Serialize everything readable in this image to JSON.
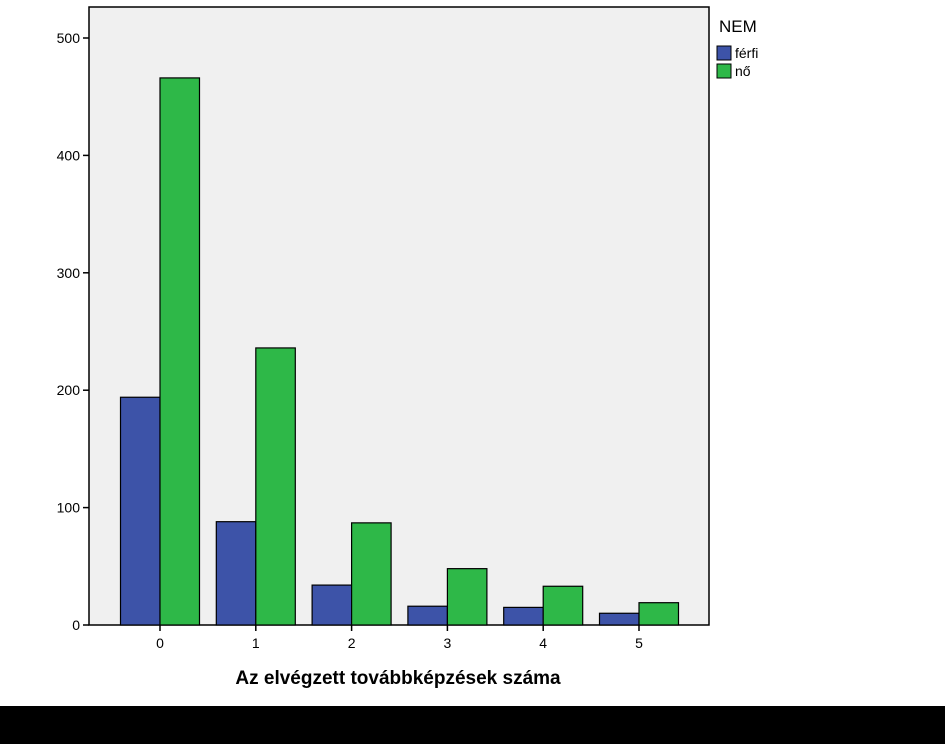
{
  "chart_data": {
    "type": "bar",
    "title": "",
    "xlabel": "Az elvégzett továbbképzések száma",
    "ylabel": "",
    "categories": [
      "0",
      "1",
      "2",
      "3",
      "4",
      "5"
    ],
    "series": [
      {
        "name": "férfi",
        "color": "#3d53a8",
        "values": [
          194,
          88,
          34,
          16,
          15,
          10
        ]
      },
      {
        "name": "nő",
        "color": "#2eb848",
        "values": [
          466,
          236,
          87,
          48,
          33,
          19
        ]
      }
    ],
    "ylim": [
      0,
      520
    ],
    "yticks": [
      0,
      100,
      200,
      300,
      400,
      500
    ],
    "grid": false,
    "legend": {
      "title": "NEM",
      "position": "top-right"
    },
    "plot_background": "#f0f0f0"
  }
}
